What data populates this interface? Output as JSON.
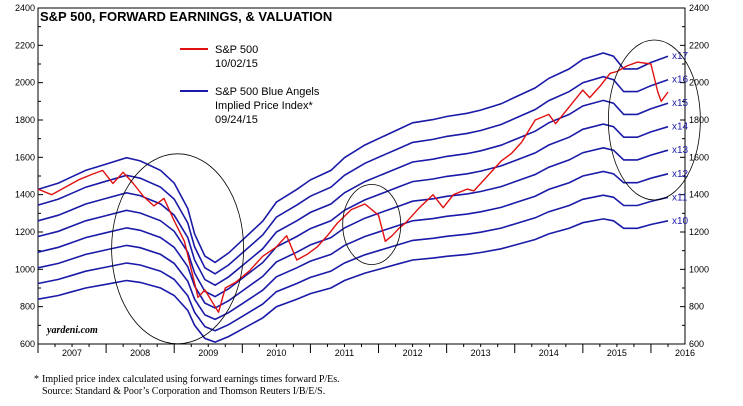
{
  "chart_data": {
    "type": "line",
    "title": "S&P 500, FORWARD EARNINGS, & VALUATION",
    "xlabel": "",
    "ylabel": "",
    "x_tick_labels": [
      "2007",
      "2008",
      "2009",
      "2010",
      "2011",
      "2012",
      "2013",
      "2014",
      "2015",
      "2016"
    ],
    "y_ticks": [
      600,
      800,
      1000,
      1200,
      1400,
      1600,
      1800,
      2000,
      2200,
      2400
    ],
    "ylim": [
      600,
      2400
    ],
    "xlim": [
      2006.5,
      2016.0
    ],
    "grid": false,
    "legend": {
      "placement": "top-left",
      "entries": [
        {
          "label": "S&P 500",
          "date": "10/02/15",
          "color": "#e01010"
        },
        {
          "label": "S&P 500 Blue Angels",
          "sublabel": "Implied Price Index*",
          "date": "09/24/15",
          "color": "#1a1aa8"
        }
      ]
    },
    "multiples": [
      "x10",
      "x11",
      "x12",
      "x13",
      "x14",
      "x15",
      "x16",
      "x17"
    ],
    "forward_earnings_series": {
      "name": "Forward earnings (implied by x10 band)",
      "x": [
        2006.5,
        2006.8,
        2007.0,
        2007.2,
        2007.5,
        2007.8,
        2008.0,
        2008.3,
        2008.5,
        2008.7,
        2008.8,
        2008.95,
        2009.1,
        2009.3,
        2009.5,
        2009.8,
        2010.0,
        2010.3,
        2010.5,
        2010.8,
        2011.0,
        2011.3,
        2011.6,
        2011.8,
        2012.0,
        2012.3,
        2012.5,
        2012.8,
        2013.0,
        2013.3,
        2013.5,
        2013.8,
        2014.0,
        2014.3,
        2014.5,
        2014.8,
        2014.95,
        2015.1,
        2015.3,
        2015.5,
        2015.75
      ],
      "y": [
        84,
        86,
        88,
        90,
        92,
        94,
        93,
        90,
        86,
        78,
        70,
        63,
        61,
        64,
        68,
        74,
        80,
        84,
        87,
        90,
        94,
        98,
        101,
        103,
        105,
        106,
        107,
        108,
        109,
        111,
        113,
        116,
        119,
        122,
        125,
        127,
        126,
        122,
        122,
        124,
        126
      ]
    },
    "sp500_series": {
      "name": "S&P 500",
      "x": [
        2006.5,
        2006.7,
        2006.9,
        2007.1,
        2007.3,
        2007.45,
        2007.6,
        2007.75,
        2007.9,
        2008.05,
        2008.2,
        2008.35,
        2008.5,
        2008.65,
        2008.75,
        2008.85,
        2008.95,
        2009.05,
        2009.15,
        2009.25,
        2009.4,
        2009.6,
        2009.8,
        2010.0,
        2010.15,
        2010.3,
        2010.45,
        2010.6,
        2010.75,
        2010.9,
        2011.1,
        2011.3,
        2011.5,
        2011.6,
        2011.7,
        2011.8,
        2011.9,
        2012.1,
        2012.3,
        2012.45,
        2012.6,
        2012.8,
        2012.9,
        2013.1,
        2013.3,
        2013.45,
        2013.6,
        2013.8,
        2014.0,
        2014.1,
        2014.3,
        2014.5,
        2014.6,
        2014.75,
        2014.9,
        2015.0,
        2015.15,
        2015.3,
        2015.5,
        2015.6,
        2015.65,
        2015.75
      ],
      "y": [
        1430,
        1400,
        1440,
        1480,
        1510,
        1530,
        1460,
        1520,
        1460,
        1390,
        1340,
        1380,
        1260,
        1150,
        1000,
        850,
        890,
        830,
        770,
        900,
        930,
        990,
        1070,
        1120,
        1180,
        1050,
        1080,
        1120,
        1180,
        1250,
        1320,
        1350,
        1290,
        1150,
        1180,
        1220,
        1250,
        1330,
        1400,
        1330,
        1400,
        1430,
        1420,
        1500,
        1580,
        1620,
        1680,
        1800,
        1830,
        1780,
        1870,
        1960,
        1920,
        1980,
        2050,
        2060,
        2090,
        2110,
        2100,
        1950,
        1900,
        1950
      ]
    },
    "annotations": [
      "yardeni.com"
    ]
  },
  "footnote": {
    "star": "*",
    "line1": "Implied price index calculated using forward earnings times forward P/Es.",
    "line2": "Source: Standard & Poor’s Corporation and Thomson Reuters I/B/E/S."
  },
  "colors": {
    "sp500": "#e01010",
    "blue_angels": "#1a1aa8",
    "axis": "#000000"
  }
}
